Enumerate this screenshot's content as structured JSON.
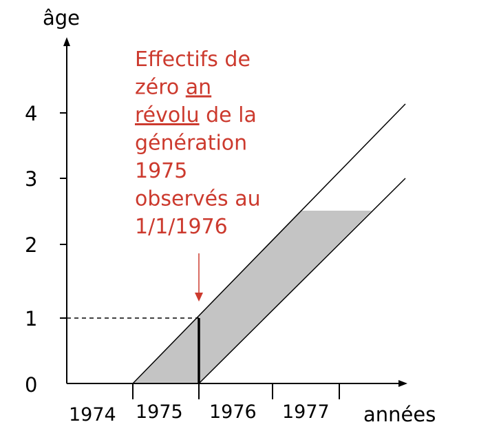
{
  "axes": {
    "y_title": "âge",
    "x_title": "années",
    "y_ticks": [
      "0",
      "1",
      "2",
      "3",
      "4"
    ],
    "x_ticks": [
      "1974",
      "1975",
      "1976",
      "1977"
    ]
  },
  "annotation": {
    "lines": [
      [
        {
          "text": "Effectifs de",
          "u": false
        }
      ],
      [
        {
          "text": "zéro ",
          "u": false
        },
        {
          "text": "an",
          "u": true
        }
      ],
      [
        {
          "text": "révolu",
          "u": true
        },
        {
          "text": " de la",
          "u": false
        }
      ],
      [
        {
          "text": "génération",
          "u": false
        }
      ],
      [
        {
          "text": "1975",
          "u": false
        }
      ],
      [
        {
          "text": "observés au",
          "u": false
        }
      ],
      [
        {
          "text": "1/1/1976",
          "u": false
        }
      ]
    ]
  },
  "colors": {
    "axis": "#000000",
    "shade": "#c4c4c4",
    "annotation": "#cc3a2e"
  }
}
